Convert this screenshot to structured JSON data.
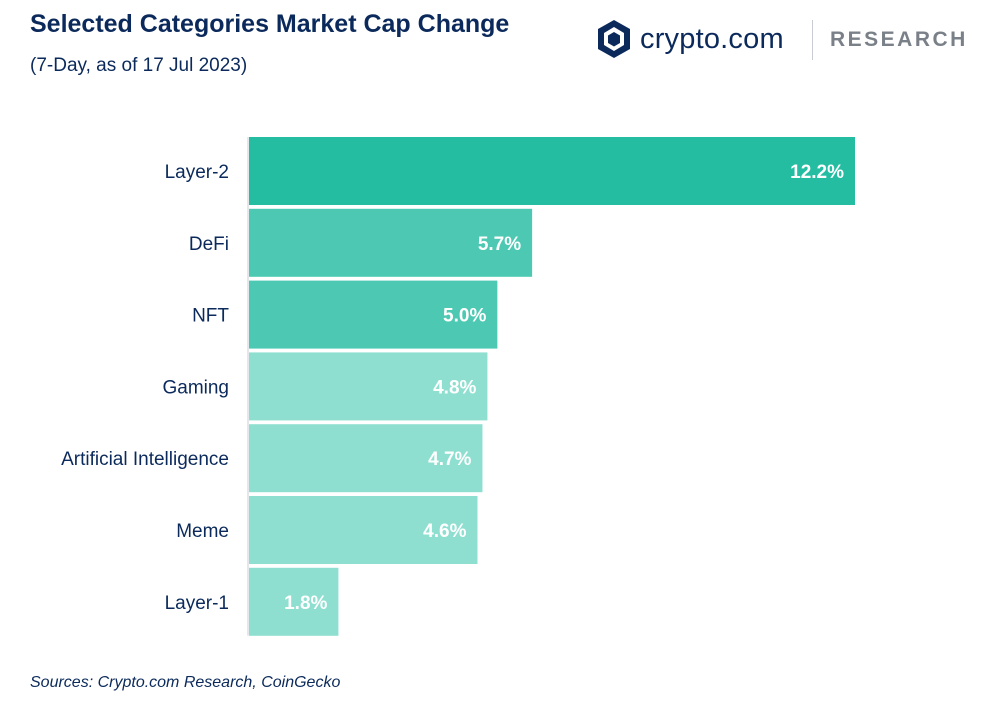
{
  "header": {
    "title": "Selected Categories Market Cap Change",
    "subtitle": "(7-Day, as of 17 Jul 2023)"
  },
  "brand": {
    "name": "crypto.com",
    "division": "RESEARCH",
    "logo_icon": "crypto-com-lion-shield-icon",
    "color": "#0b2a5b"
  },
  "footer": {
    "source": "Sources: Crypto.com Research, CoinGecko"
  },
  "chart_data": {
    "type": "bar",
    "orientation": "horizontal",
    "title": "Selected Categories Market Cap Change",
    "subtitle": "(7-Day, as of 17 Jul 2023)",
    "xlabel": "",
    "ylabel": "",
    "unit": "%",
    "xlim": [
      0,
      12.2
    ],
    "grid": false,
    "categories": [
      "Layer-2",
      "DeFi",
      "NFT",
      "Gaming",
      "Artificial Intelligence",
      "Meme",
      "Layer-1"
    ],
    "values": [
      12.2,
      5.7,
      5.0,
      4.8,
      4.7,
      4.6,
      1.8
    ],
    "value_labels": [
      "12.2%",
      "5.7%",
      "5.0%",
      "4.8%",
      "4.7%",
      "4.6%",
      "1.8%"
    ],
    "bar_colors": [
      "#24bda2",
      "#4dc9b3",
      "#4dc9b3",
      "#8fdfd0",
      "#8fdfd0",
      "#8fdfd0",
      "#8fdfd0"
    ],
    "label_color": "#ffffff",
    "category_color": "#0b2a5b"
  }
}
